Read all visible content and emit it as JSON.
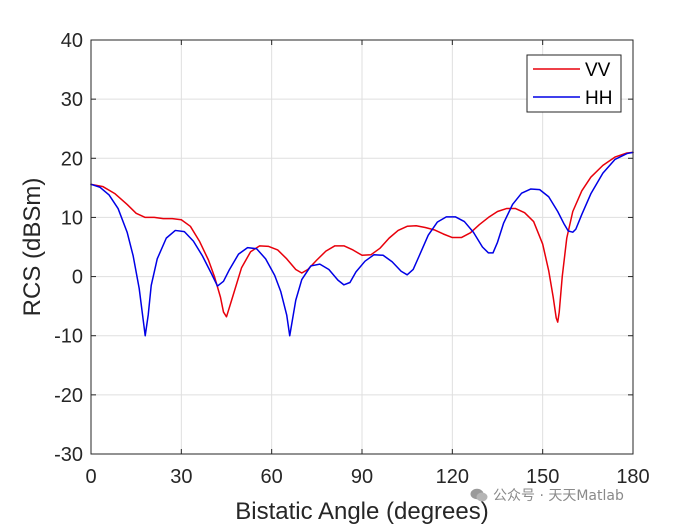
{
  "chart_data": {
    "type": "line",
    "title": "",
    "xlabel": "Bistatic Angle (degrees)",
    "ylabel": "RCS (dBSm)",
    "xlim": [
      0,
      180
    ],
    "ylim": [
      -30,
      40
    ],
    "xticks": [
      0,
      30,
      60,
      90,
      120,
      150,
      180
    ],
    "yticks": [
      -30,
      -20,
      -10,
      0,
      10,
      20,
      30,
      40
    ],
    "grid": true,
    "legend_position": "top-right",
    "series": [
      {
        "name": "VV",
        "color": "#e8000b",
        "x": [
          0,
          4,
          8,
          12,
          15,
          18,
          21,
          24,
          27,
          30,
          33,
          36,
          39,
          41,
          43,
          44,
          45,
          47,
          50,
          53,
          56,
          59,
          62,
          65,
          68,
          70,
          72,
          75,
          78,
          81,
          84,
          87,
          90,
          93,
          96,
          99,
          102,
          105,
          108,
          111,
          114,
          117,
          120,
          123,
          126,
          129,
          132,
          135,
          138,
          141,
          144,
          147,
          150,
          152,
          153.5,
          154.5,
          155,
          155.5,
          156.5,
          158,
          160,
          163,
          166,
          170,
          174,
          178,
          180
        ],
        "y": [
          15.6,
          15.2,
          14.0,
          12.2,
          10.7,
          10.0,
          10.0,
          9.8,
          9.8,
          9.6,
          8.5,
          6.0,
          2.8,
          0.0,
          -3.5,
          -6.0,
          -6.8,
          -3.5,
          1.5,
          4.2,
          5.2,
          5.1,
          4.5,
          3.0,
          1.2,
          0.6,
          1.2,
          2.8,
          4.3,
          5.2,
          5.2,
          4.5,
          3.6,
          3.7,
          4.8,
          6.5,
          7.8,
          8.5,
          8.6,
          8.3,
          7.9,
          7.2,
          6.6,
          6.6,
          7.4,
          8.8,
          10.0,
          11.0,
          11.5,
          11.5,
          10.8,
          9.3,
          5.5,
          1.0,
          -3.5,
          -7.0,
          -7.7,
          -6.0,
          0.0,
          6.5,
          11.0,
          14.5,
          16.8,
          18.8,
          20.2,
          20.9,
          21.0
        ]
      },
      {
        "name": "HH",
        "color": "#0000e6",
        "x": [
          0,
          3,
          6,
          9,
          12,
          14,
          16,
          17,
          18,
          19,
          20,
          22,
          25,
          28,
          31,
          34,
          37,
          40,
          42,
          44,
          46,
          49,
          52,
          55,
          58,
          61,
          63,
          65,
          66,
          67,
          68,
          70,
          73,
          76,
          79,
          82,
          84,
          86,
          88,
          91,
          94,
          97,
          100,
          103,
          105,
          107,
          109,
          112,
          115,
          118,
          121,
          124,
          127,
          130,
          132,
          133.5,
          135,
          137,
          140,
          143,
          146,
          149,
          152,
          155,
          157,
          158.5,
          160,
          161,
          163,
          166,
          170,
          174,
          178,
          180
        ],
        "y": [
          15.6,
          15.1,
          13.8,
          11.5,
          7.5,
          3.5,
          -2.0,
          -6.0,
          -10.0,
          -6.5,
          -1.5,
          3.0,
          6.5,
          7.8,
          7.6,
          6.0,
          3.5,
          0.5,
          -1.6,
          -0.8,
          1.2,
          3.8,
          4.9,
          4.7,
          3.0,
          0.2,
          -2.5,
          -6.5,
          -10.0,
          -7.0,
          -4.0,
          -0.5,
          1.8,
          2.1,
          1.2,
          -0.6,
          -1.4,
          -1.0,
          0.8,
          2.6,
          3.7,
          3.6,
          2.5,
          0.9,
          0.3,
          1.2,
          3.5,
          7.0,
          9.2,
          10.1,
          10.1,
          9.3,
          7.5,
          5.0,
          4.0,
          4.0,
          5.8,
          9.0,
          12.2,
          14.1,
          14.8,
          14.7,
          13.5,
          11.0,
          9.0,
          7.7,
          7.5,
          8.0,
          10.5,
          14.0,
          17.5,
          19.8,
          20.8,
          21.0
        ]
      }
    ]
  },
  "watermark": {
    "icon": "wechat-icon",
    "text": "公众号 · 天天Matlab"
  }
}
